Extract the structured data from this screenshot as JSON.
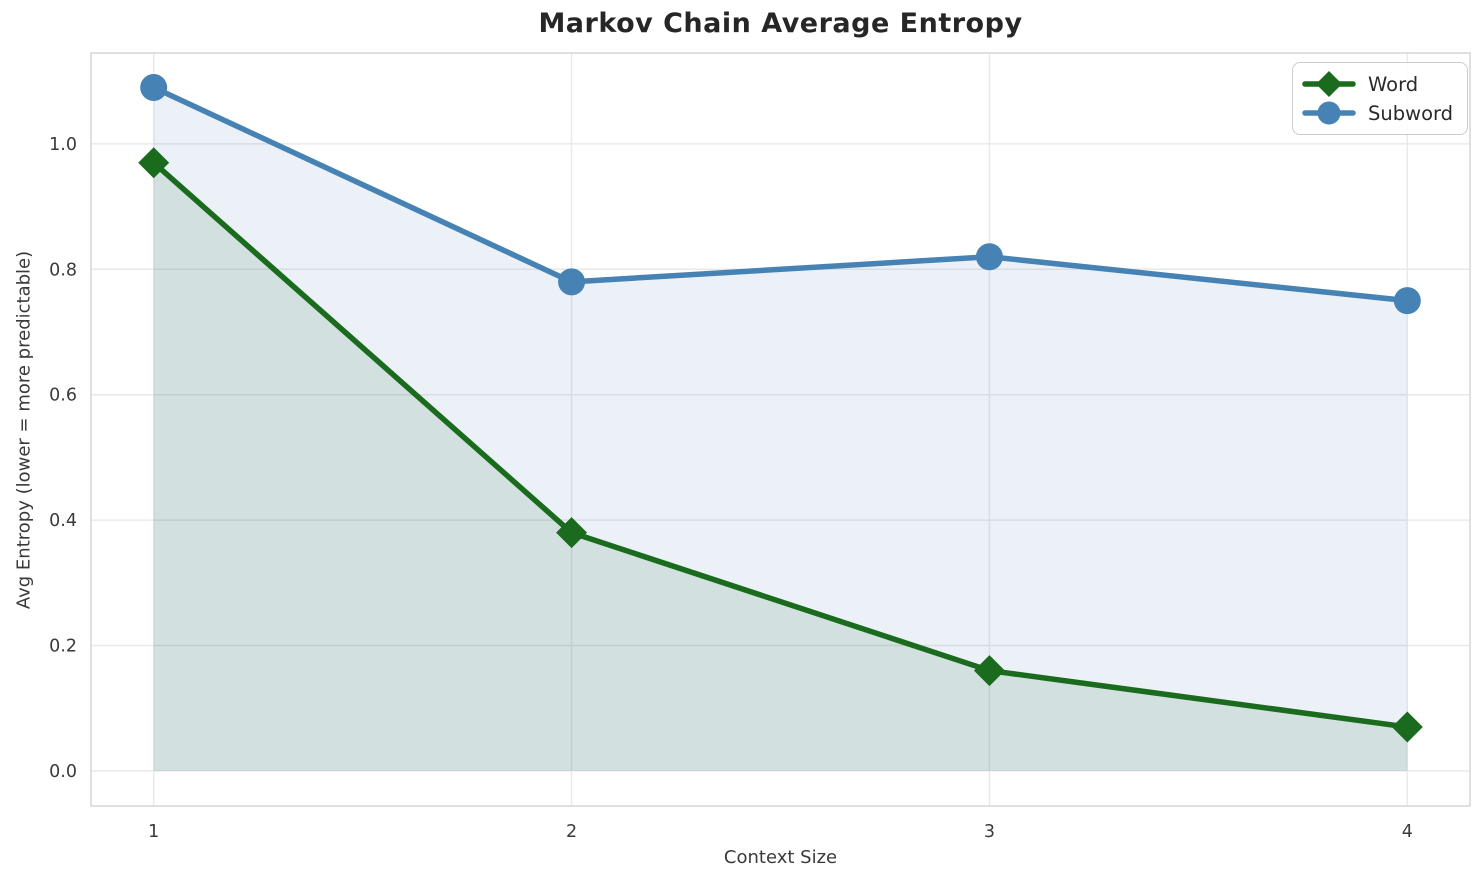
{
  "chart_data": {
    "type": "line",
    "title": "Markov Chain Average Entropy",
    "xlabel": "Context Size",
    "ylabel": "Avg Entropy (lower = more predictable)",
    "x": [
      1,
      2,
      3,
      4
    ],
    "series": [
      {
        "name": "Word",
        "values": [
          0.97,
          0.38,
          0.16,
          0.07
        ],
        "color": "#1a6b1e",
        "fill_alpha": 0.12,
        "marker": "diamond"
      },
      {
        "name": "Subword",
        "values": [
          1.09,
          0.78,
          0.82,
          0.75
        ],
        "color": "#4682b4",
        "fill_alpha": 0.11,
        "marker": "circle"
      }
    ],
    "xticks": [
      1,
      2,
      3,
      4
    ],
    "yticks": [
      0.0,
      0.2,
      0.4,
      0.6,
      0.8,
      1.0
    ],
    "xlim": [
      0.85,
      4.15
    ],
    "ylim": [
      -0.056,
      1.145
    ],
    "grid": true,
    "area_fill_baseline": 0,
    "legend_position": "upper right"
  },
  "colors": {
    "grid": "#e9e9e9",
    "border": "#d6d6d6",
    "tick_label": "#3a3a3a",
    "title": "#262626",
    "background": "#ffffff"
  }
}
